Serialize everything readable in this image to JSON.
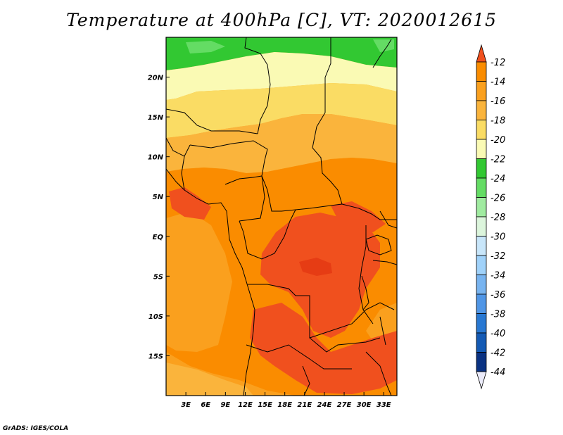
{
  "title": "Temperature at 400hPa [C], VT: 2020012615",
  "credit": "GrADS: IGES/COLA",
  "map": {
    "lon_labels": [
      "3E",
      "6E",
      "9E",
      "12E",
      "15E",
      "18E",
      "21E",
      "24E",
      "27E",
      "30E",
      "33E"
    ],
    "lon_values": [
      3,
      6,
      9,
      12,
      15,
      18,
      21,
      24,
      27,
      30,
      33
    ],
    "lat_labels": [
      "20N",
      "15N",
      "10N",
      "5N",
      "EQ",
      "5S",
      "10S",
      "15S"
    ],
    "lat_values": [
      20,
      15,
      10,
      5,
      0,
      -5,
      -10,
      -15
    ],
    "lon_range": [
      0,
      35
    ],
    "lat_range": [
      -20,
      25
    ]
  },
  "colorbar": {
    "labels": [
      "-12",
      "-14",
      "-16",
      "-18",
      "-20",
      "-22",
      "-24",
      "-26",
      "-28",
      "-30",
      "-32",
      "-34",
      "-36",
      "-38",
      "-40",
      "-42",
      "-44"
    ],
    "colors": [
      "#f0501e",
      "#fa8c00",
      "#faa01e",
      "#fab43c",
      "#fadc64",
      "#fafab4",
      "#32c832",
      "#64dc64",
      "#a0eba0",
      "#dcf5dc",
      "#c8e6fa",
      "#a0d2fa",
      "#78b4f0",
      "#5096e6",
      "#2878d2",
      "#145ab4",
      "#0a3282",
      "#0a0a64",
      "#ebebfa"
    ]
  },
  "colors": {
    "green_dark": "#32c832",
    "green_light": "#64dc64",
    "yellow_pale": "#fafab4",
    "yellow": "#fadc64",
    "orange_light": "#fab43c",
    "orange": "#faa01e",
    "orange_deep": "#fa8c00",
    "red_orange": "#f0501e"
  }
}
